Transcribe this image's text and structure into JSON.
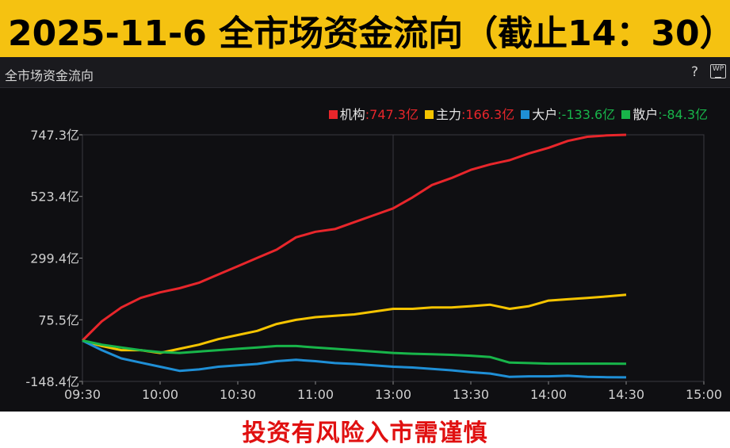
{
  "banner": {
    "title": "2025-11-6 全市场资金流向（截止14：30）"
  },
  "panel": {
    "title": "全市场资金流向",
    "help": "?",
    "wp_icon": "WP"
  },
  "footer": {
    "text": "投资有风险入市需谨慎"
  },
  "legend": [
    {
      "name": "机构",
      "value": ":747.3亿",
      "color": "#e8262b"
    },
    {
      "name": "主力",
      "value": ":166.3亿",
      "color": "#f5c400"
    },
    {
      "name": "大户",
      "value": ":-133.6亿",
      "color": "#1f8fd6"
    },
    {
      "name": "散户",
      "value": ":-84.3亿",
      "color": "#18b54a"
    }
  ],
  "chart_data": {
    "type": "line",
    "ylim": [
      -148.4,
      747.3
    ],
    "y_ticks": [
      "747.3亿",
      "523.4亿",
      "299.4亿",
      "75.5亿",
      "-148.4亿"
    ],
    "y_tick_values": [
      747.3,
      523.4,
      299.4,
      75.5,
      -148.4
    ],
    "x_ticks": [
      "09:30",
      "10:00",
      "10:30",
      "11:00",
      "13:00",
      "13:30",
      "14:00",
      "14:30",
      "15:00"
    ],
    "grid": "vertical-midday",
    "legend_position": "top-right",
    "series": [
      {
        "name": "机构",
        "color": "#e8262b",
        "values": [
          0,
          70,
          120,
          155,
          175,
          190,
          210,
          240,
          270,
          300,
          330,
          375,
          395,
          405,
          430,
          455,
          480,
          520,
          565,
          590,
          620,
          640,
          655,
          680,
          700,
          725,
          740,
          745,
          747.3
        ]
      },
      {
        "name": "主力",
        "color": "#f5c400",
        "values": [
          0,
          -20,
          -35,
          -35,
          -45,
          -30,
          -15,
          5,
          20,
          35,
          60,
          75,
          85,
          90,
          95,
          105,
          115,
          115,
          120,
          120,
          125,
          130,
          115,
          125,
          145,
          150,
          155,
          160,
          166.3
        ]
      },
      {
        "name": "大户",
        "color": "#1f8fd6",
        "values": [
          0,
          -35,
          -65,
          -80,
          -95,
          -110,
          -105,
          -95,
          -90,
          -85,
          -75,
          -70,
          -75,
          -82,
          -85,
          -90,
          -95,
          -98,
          -103,
          -108,
          -115,
          -120,
          -132,
          -130,
          -130,
          -128,
          -132,
          -133,
          -133.6
        ]
      },
      {
        "name": "散户",
        "color": "#18b54a",
        "values": [
          0,
          -15,
          -25,
          -35,
          -42,
          -45,
          -40,
          -35,
          -30,
          -25,
          -20,
          -20,
          -25,
          -30,
          -35,
          -40,
          -45,
          -48,
          -50,
          -52,
          -55,
          -60,
          -80,
          -82,
          -84,
          -84,
          -84,
          -84,
          -84.3
        ]
      }
    ]
  }
}
